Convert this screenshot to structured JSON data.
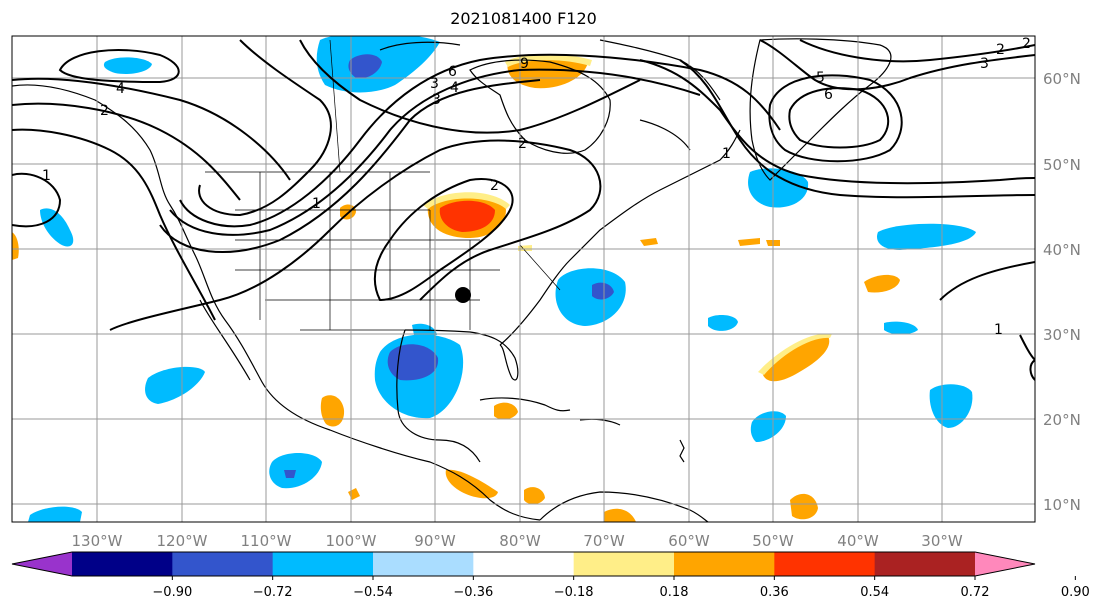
{
  "title": "2021081400 F120",
  "map": {
    "projection": "plate-carree",
    "lon_range": [
      -139,
      -18
    ],
    "lat_range": [
      8,
      65
    ],
    "gridlines": true,
    "lon_ticks": [
      "130°W",
      "120°W",
      "110°W",
      "100°W",
      "90°W",
      "80°W",
      "70°W",
      "60°W",
      "50°W",
      "40°W",
      "30°W"
    ],
    "lat_ticks": [
      "60°N",
      "50°N",
      "40°N",
      "30°N",
      "20°N",
      "10°N"
    ],
    "marker": {
      "name": "location-dot",
      "lon": -87.0,
      "lat": 34.5
    }
  },
  "colorbar": {
    "colors": [
      "#9933cc",
      "#000088",
      "#3355cc",
      "#00bbff",
      "#aaddff",
      "#ffffff",
      "#ffee88",
      "#ffa500",
      "#ff3300",
      "#aa2222",
      "#ff88bb"
    ],
    "tick_labels": [
      "−0.90",
      "−0.72",
      "−0.54",
      "−0.36",
      "−0.18",
      "0.18",
      "0.36",
      "0.54",
      "0.72",
      "0.90"
    ],
    "extend": "both"
  },
  "contour_labels": [
    "4",
    "2",
    "1",
    "1",
    "2",
    "3",
    "3",
    "6",
    "4",
    "9",
    "2",
    "1",
    "2",
    "5",
    "6",
    "3",
    "2",
    "1"
  ]
}
